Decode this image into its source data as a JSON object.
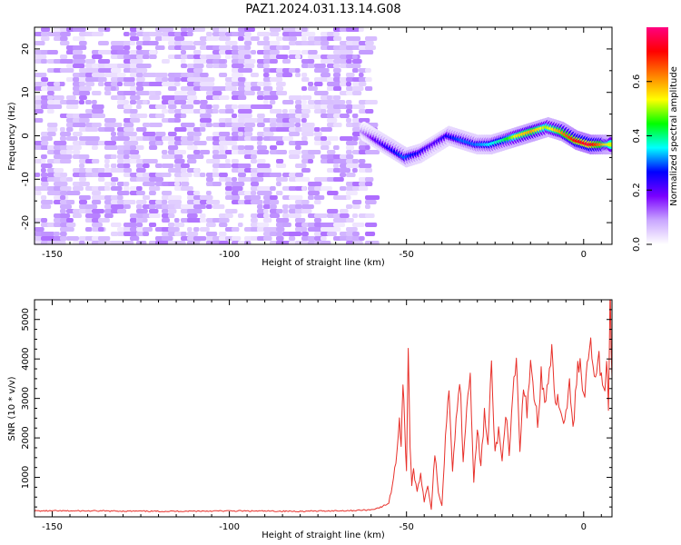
{
  "title": "PAZ1.2024.031.13.14.G08",
  "chart_data": [
    {
      "type": "heatmap",
      "xlabel": "Height of straight line (km)",
      "ylabel": "Frequency (Hz)",
      "xlim": [
        -155,
        8
      ],
      "ylim": [
        -25,
        25
      ],
      "xticks": [
        -150,
        -100,
        -50,
        0
      ],
      "yticks": [
        -20,
        -10,
        0,
        10,
        20
      ],
      "colorbar": {
        "label": "Normalized spectral amplitude",
        "range": [
          0,
          0.8
        ],
        "ticks": [
          0.0,
          0.2,
          0.4,
          0.6
        ],
        "colors": [
          "#ffffff",
          "#c9a6ff",
          "#7a00ff",
          "#0000ff",
          "#00ffff",
          "#00ff00",
          "#ffff00",
          "#ff8000",
          "#ff0000",
          "#ff0080"
        ]
      },
      "noise_region": {
        "x": [
          -155,
          -60
        ],
        "y": [
          -25,
          25
        ],
        "amplitude": [
          0.02,
          0.12
        ]
      },
      "signal_track": {
        "x": [
          -62,
          -58,
          -54,
          -50,
          -46,
          -42,
          -38,
          -34,
          -30,
          -26,
          -22,
          -18,
          -14,
          -10,
          -6,
          -2,
          2,
          6,
          8
        ],
        "freq": [
          1,
          -1,
          -3,
          -5,
          -4,
          -2,
          0,
          -1,
          -2,
          -2,
          -1,
          0,
          1,
          2,
          1,
          -1,
          -2,
          -2,
          -2
        ],
        "amplitude": [
          0.1,
          0.2,
          0.25,
          0.3,
          0.25,
          0.2,
          0.25,
          0.3,
          0.3,
          0.35,
          0.4,
          0.55,
          0.6,
          0.5,
          0.6,
          0.7,
          0.75,
          0.6,
          0.5
        ]
      }
    },
    {
      "type": "line",
      "xlabel": "Height of straight line (km)",
      "ylabel": "SNR (10 * v/v)",
      "xlim": [
        -155,
        8
      ],
      "ylim": [
        0,
        5500
      ],
      "xticks": [
        -150,
        -100,
        -50,
        0
      ],
      "yticks": [
        1000,
        2000,
        3000,
        4000,
        5000
      ],
      "color": "#e8302a",
      "x": [
        -155,
        -140,
        -120,
        -100,
        -80,
        -65,
        -60,
        -57,
        -55,
        -54,
        -53,
        -52,
        -51.5,
        -51,
        -50.5,
        -50,
        -49.5,
        -49,
        -48.5,
        -48,
        -47,
        -46,
        -45,
        -44,
        -43,
        -42,
        -41,
        -40,
        -39,
        -38,
        -37,
        -36,
        -35,
        -34,
        -33,
        -32,
        -31,
        -30,
        -29,
        -28,
        -27,
        -26,
        -25,
        -24,
        -23,
        -22,
        -21,
        -20,
        -19,
        -18,
        -17,
        -16,
        -15,
        -14,
        -13,
        -12,
        -11,
        -10,
        -9,
        -8,
        -7,
        -6,
        -5,
        -4,
        -3,
        -2,
        -1,
        0,
        1,
        2,
        3,
        4,
        5,
        6,
        6.5,
        7,
        7.5,
        8
      ],
      "y": [
        150,
        150,
        140,
        150,
        140,
        160,
        180,
        250,
        350,
        800,
        1400,
        2500,
        1800,
        3500,
        2200,
        1200,
        4500,
        1800,
        800,
        1200,
        600,
        1100,
        400,
        800,
        200,
        1600,
        600,
        300,
        2000,
        3400,
        1200,
        2400,
        3600,
        1500,
        2800,
        3700,
        900,
        2200,
        1300,
        2600,
        1800,
        3800,
        1600,
        2200,
        1400,
        2700,
        1500,
        3000,
        3900,
        1700,
        3200,
        2700,
        4000,
        3100,
        2400,
        3600,
        2800,
        3500,
        4100,
        2700,
        3000,
        2400,
        2600,
        3300,
        2200,
        3400,
        4200,
        3000,
        3800,
        4600,
        3600,
        4100,
        3700,
        3200,
        3900,
        2900,
        5500,
        3500
      ]
    }
  ]
}
